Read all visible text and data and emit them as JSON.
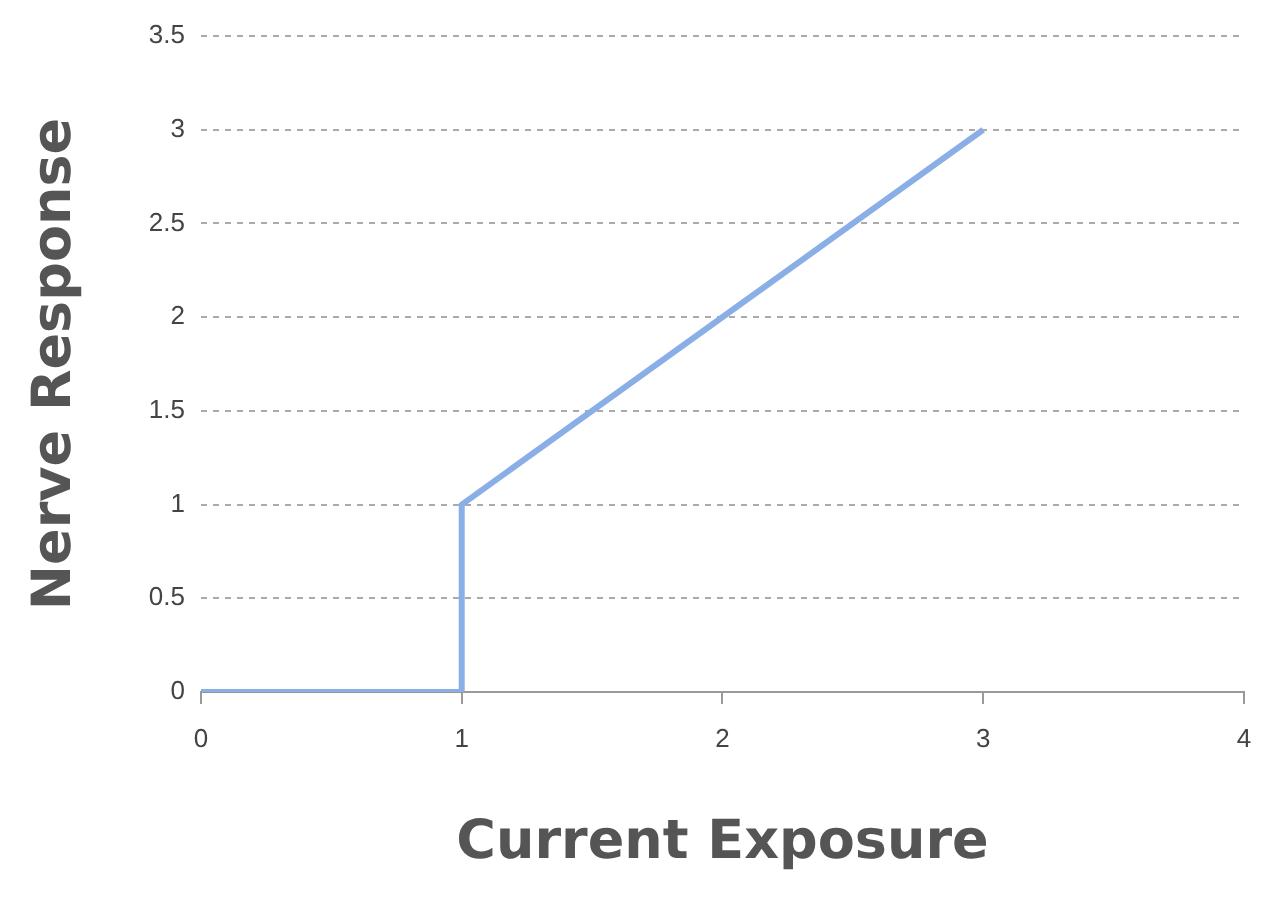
{
  "chart_data": {
    "type": "line",
    "xlabel": "Current Exposure",
    "ylabel": "Nerve Response",
    "x": [
      0,
      1,
      1,
      3
    ],
    "series": [
      {
        "color": "#8aaee6",
        "values": [
          0,
          0,
          1,
          3
        ]
      }
    ],
    "xlim": [
      0,
      4
    ],
    "xticks": [
      0,
      1,
      2,
      3,
      4
    ],
    "ylim": [
      0,
      3.5
    ],
    "yticks": [
      0,
      0.5,
      1,
      1.5,
      2,
      2.5,
      3,
      3.5
    ],
    "grid": "y",
    "legend": false,
    "marker": "none",
    "line_style": "solid"
  }
}
